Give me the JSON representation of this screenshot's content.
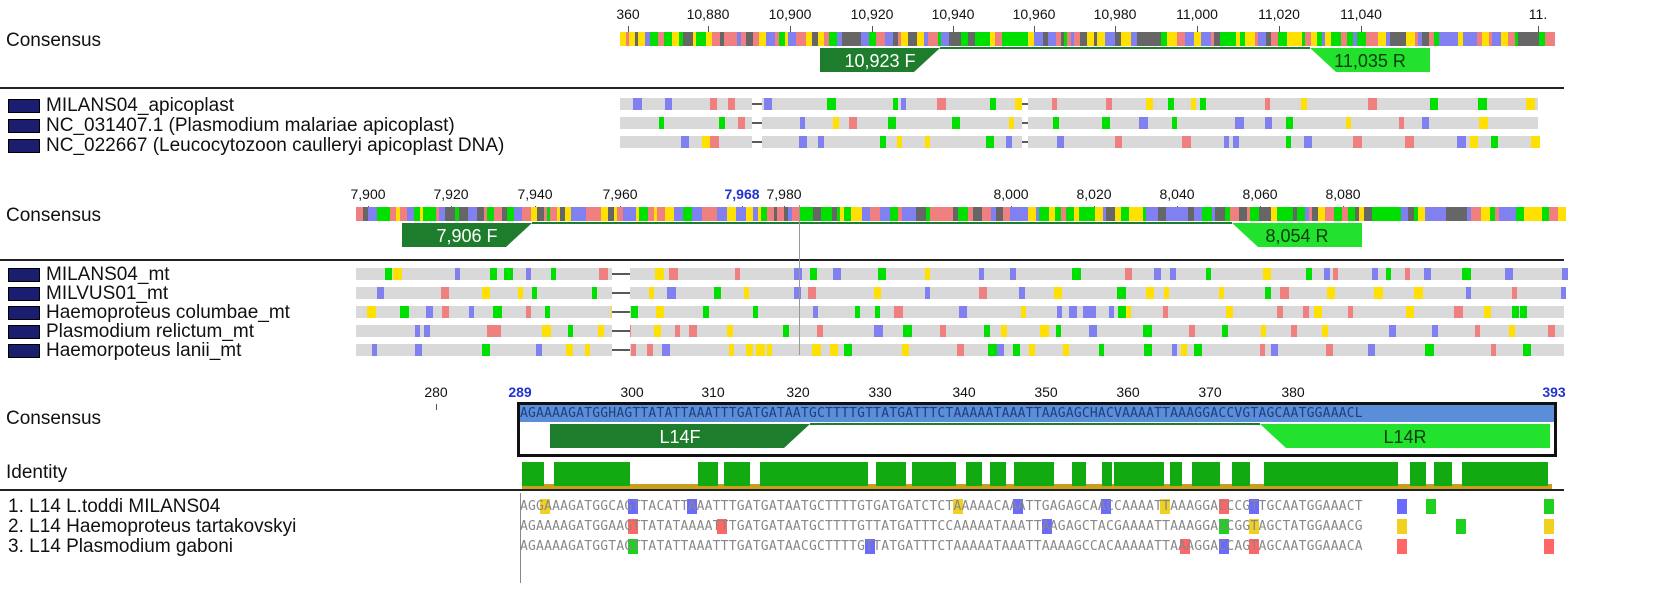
{
  "panel1": {
    "consensus_label": "Consensus",
    "ticks": [
      "360",
      "10,880",
      "10,900",
      "10,920",
      "10,940",
      "10,960",
      "10,980",
      "11,000",
      "11,020",
      "11,040",
      "11."
    ],
    "primers": [
      {
        "label": "10,923 F",
        "dir": "F"
      },
      {
        "label": "11,035 R",
        "dir": "R"
      }
    ],
    "sequences": [
      "MILANS04_apicoplast",
      "NC_031407.1 (Plasmodium malariae apicoplast)",
      "NC_022667 (Leucocytozoon caulleryi apicoplast DNA)"
    ]
  },
  "panel2": {
    "consensus_label": "Consensus",
    "ticks": [
      "7,900",
      "7,920",
      "7,940",
      "7,960",
      "7,968",
      "7,980",
      "8,000",
      "8,020",
      "8,040",
      "8,060",
      "8,080"
    ],
    "highlight_tick": "7,968",
    "primers": [
      {
        "label": "7,906 F",
        "dir": "F"
      },
      {
        "label": "8,054 R",
        "dir": "R"
      }
    ],
    "sequences": [
      "MILANS04_mt",
      "MILVUS01_mt",
      "Haemoproteus columbae_mt",
      "Plasmodium relictum_mt",
      "Haemorpoteus lanii_mt"
    ]
  },
  "panel3": {
    "consensus_label": "Consensus",
    "identity_label": "Identity",
    "ticks": [
      "280",
      "289",
      "300",
      "310",
      "320",
      "330",
      "340",
      "350",
      "360",
      "370",
      "380",
      "393"
    ],
    "highlight_ticks": [
      "289",
      "393"
    ],
    "consensus_seq": "AGAAAAGATGGHAGTTATATTAAATTTGATGATAATGCTTTTGTTATGATTTCTAAAAATAAATTAAGAGCHACVAAAATTAAAGGACCVGTAGCAATGGAAACL",
    "primers": [
      {
        "label": "L14F",
        "dir": "F"
      },
      {
        "label": "L14R",
        "dir": "R"
      }
    ],
    "sequences": [
      {
        "name": "1. L14 L.toddi MILANS04",
        "seq": "AGGAAAGATGGCAGTTACATTAAATTTGATGATAATGCTTTTGTGATGATCTCTAAAAACAAATTGAGAGCAACCAAAATTAAAGGACCCGTTGCAATGGAAACT"
      },
      {
        "name": "2. L14 Haemoproteus tartakovskyi",
        "seq": "AGAAAAGATGGAAGTTATATAAAATTTGATGATAATGCTTTTGTTATGATTTCCAAAAATAAATTAAGAGCTACGAAAATTAAAGGACCGGTAGCTATGGAAACG"
      },
      {
        "name": "3. L14 Plasmodium gaboni",
        "seq": "AGAAAAGATGGTAGTTATATTAAATTTGATGATAACGCTTTTGTTATGATTTCTAAAAATAAATTAAAAGCCACAAAAATTAAAGGACCAGTAGCAATGGAAACA"
      }
    ]
  }
}
